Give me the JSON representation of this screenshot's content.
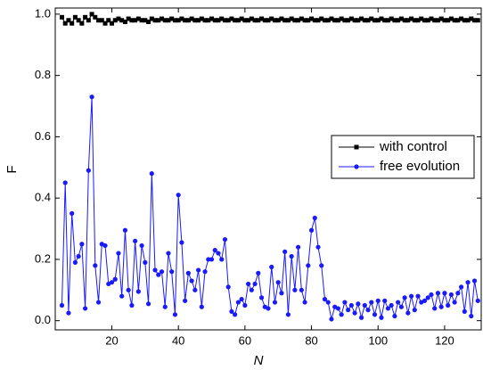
{
  "chart_data": {
    "type": "line",
    "xlabel": "N",
    "ylabel": "F",
    "x": [
      5,
      6,
      7,
      8,
      9,
      10,
      11,
      12,
      13,
      14,
      15,
      16,
      17,
      18,
      19,
      20,
      21,
      22,
      23,
      24,
      25,
      26,
      27,
      28,
      29,
      30,
      31,
      32,
      33,
      34,
      35,
      36,
      37,
      38,
      39,
      40,
      41,
      42,
      43,
      44,
      45,
      46,
      47,
      48,
      49,
      50,
      51,
      52,
      53,
      54,
      55,
      56,
      57,
      58,
      59,
      60,
      61,
      62,
      63,
      64,
      65,
      66,
      67,
      68,
      69,
      70,
      71,
      72,
      73,
      74,
      75,
      76,
      77,
      78,
      79,
      80,
      81,
      82,
      83,
      84,
      85,
      86,
      87,
      88,
      89,
      90,
      91,
      92,
      93,
      94,
      95,
      96,
      97,
      98,
      99,
      100,
      101,
      102,
      103,
      104,
      105,
      106,
      107,
      108,
      109,
      110,
      111,
      112,
      113,
      114,
      115,
      116,
      117,
      118,
      119,
      120,
      121,
      122,
      123,
      124,
      125,
      126,
      127,
      128,
      129,
      130
    ],
    "series": [
      {
        "name": "with control",
        "color": "#000000",
        "marker": "square",
        "values": [
          0.99,
          0.97,
          0.98,
          0.97,
          0.99,
          0.98,
          0.97,
          0.99,
          0.98,
          1.0,
          0.99,
          0.98,
          0.98,
          0.97,
          0.98,
          0.97,
          0.98,
          0.985,
          0.98,
          0.975,
          0.985,
          0.98,
          0.98,
          0.985,
          0.98,
          0.98,
          0.975,
          0.985,
          0.98,
          0.98,
          0.985,
          0.98,
          0.98,
          0.985,
          0.98,
          0.98,
          0.985,
          0.98,
          0.98,
          0.985,
          0.98,
          0.98,
          0.985,
          0.98,
          0.98,
          0.985,
          0.98,
          0.98,
          0.985,
          0.98,
          0.98,
          0.985,
          0.98,
          0.98,
          0.985,
          0.98,
          0.98,
          0.985,
          0.98,
          0.98,
          0.985,
          0.98,
          0.98,
          0.985,
          0.98,
          0.98,
          0.985,
          0.98,
          0.98,
          0.985,
          0.98,
          0.98,
          0.985,
          0.98,
          0.98,
          0.985,
          0.98,
          0.98,
          0.985,
          0.98,
          0.98,
          0.985,
          0.98,
          0.98,
          0.985,
          0.98,
          0.98,
          0.985,
          0.98,
          0.98,
          0.985,
          0.98,
          0.98,
          0.985,
          0.98,
          0.98,
          0.985,
          0.98,
          0.98,
          0.985,
          0.98,
          0.98,
          0.985,
          0.98,
          0.98,
          0.985,
          0.98,
          0.98,
          0.985,
          0.98,
          0.98,
          0.985,
          0.98,
          0.98,
          0.985,
          0.98,
          0.98,
          0.985,
          0.98,
          0.98,
          0.985,
          0.98,
          0.98,
          0.985,
          0.98,
          0.98
        ]
      },
      {
        "name": "free evolution",
        "color": "#1a1aff",
        "marker": "circle",
        "values": [
          0.05,
          0.45,
          0.025,
          0.35,
          0.19,
          0.21,
          0.25,
          0.04,
          0.49,
          0.73,
          0.18,
          0.06,
          0.25,
          0.245,
          0.12,
          0.125,
          0.135,
          0.22,
          0.08,
          0.295,
          0.1,
          0.05,
          0.26,
          0.095,
          0.245,
          0.19,
          0.055,
          0.48,
          0.165,
          0.15,
          0.16,
          0.045,
          0.22,
          0.16,
          0.02,
          0.41,
          0.255,
          0.065,
          0.155,
          0.13,
          0.1,
          0.165,
          0.045,
          0.16,
          0.2,
          0.2,
          0.23,
          0.22,
          0.2,
          0.265,
          0.11,
          0.03,
          0.02,
          0.06,
          0.07,
          0.05,
          0.12,
          0.1,
          0.12,
          0.155,
          0.075,
          0.045,
          0.04,
          0.175,
          0.06,
          0.125,
          0.09,
          0.225,
          0.02,
          0.21,
          0.1,
          0.24,
          0.1,
          0.06,
          0.18,
          0.295,
          0.335,
          0.24,
          0.18,
          0.07,
          0.06,
          0.005,
          0.045,
          0.04,
          0.02,
          0.06,
          0.035,
          0.05,
          0.025,
          0.055,
          0.01,
          0.05,
          0.035,
          0.06,
          0.02,
          0.065,
          0.01,
          0.065,
          0.04,
          0.05,
          0.015,
          0.06,
          0.045,
          0.075,
          0.025,
          0.08,
          0.035,
          0.08,
          0.06,
          0.065,
          0.075,
          0.085,
          0.04,
          0.09,
          0.045,
          0.09,
          0.05,
          0.085,
          0.06,
          0.09,
          0.11,
          0.03,
          0.125,
          0.015,
          0.13,
          0.065
        ]
      }
    ],
    "xlim": [
      3,
      131
    ],
    "xticks": [
      20,
      40,
      60,
      80,
      100,
      120
    ],
    "ylim": [
      -0.03,
      1.02
    ],
    "yticks": [
      {
        "value": 0,
        "label": "0.0"
      },
      {
        "value": 0.2,
        "label": "0.2"
      },
      {
        "value": 0.4,
        "label": "0.4"
      },
      {
        "value": 0.6,
        "label": "0.6"
      },
      {
        "value": 0.8,
        "label": "0.8"
      },
      {
        "value": 1.0,
        "label": "1.0"
      }
    ],
    "legend": "right"
  }
}
